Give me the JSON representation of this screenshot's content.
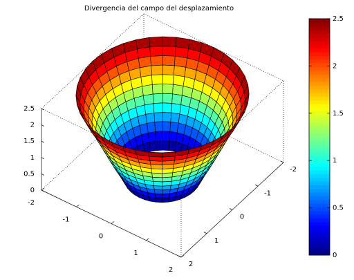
{
  "chart_data": {
    "type": "surface",
    "title": "Divergencia del campo del desplazamiento",
    "r": [
      0.9,
      0.99,
      1.08,
      1.18,
      1.27,
      1.36,
      1.45,
      1.54,
      1.63,
      1.72,
      1.82,
      1.91,
      2.0
    ],
    "z": [
      0,
      0.21,
      0.42,
      0.63,
      0.83,
      1.04,
      1.25,
      1.46,
      1.67,
      1.88,
      2.08,
      2.29,
      2.5
    ],
    "xlim": [
      -2,
      2
    ],
    "ylim": [
      -2,
      2
    ],
    "zlim": [
      0,
      2.5
    ],
    "xticks": [
      -2,
      -1,
      0,
      1,
      2
    ],
    "yticks": [
      -2,
      -1,
      0,
      1,
      2
    ],
    "zticks": [
      0,
      0.5,
      1,
      1.5,
      2,
      2.5
    ],
    "colormap": "jet",
    "clim": [
      0,
      2.5
    ],
    "cticks": [
      0,
      0.5,
      1,
      1.5,
      2,
      2.5
    ],
    "edgecolor": "#000000"
  }
}
